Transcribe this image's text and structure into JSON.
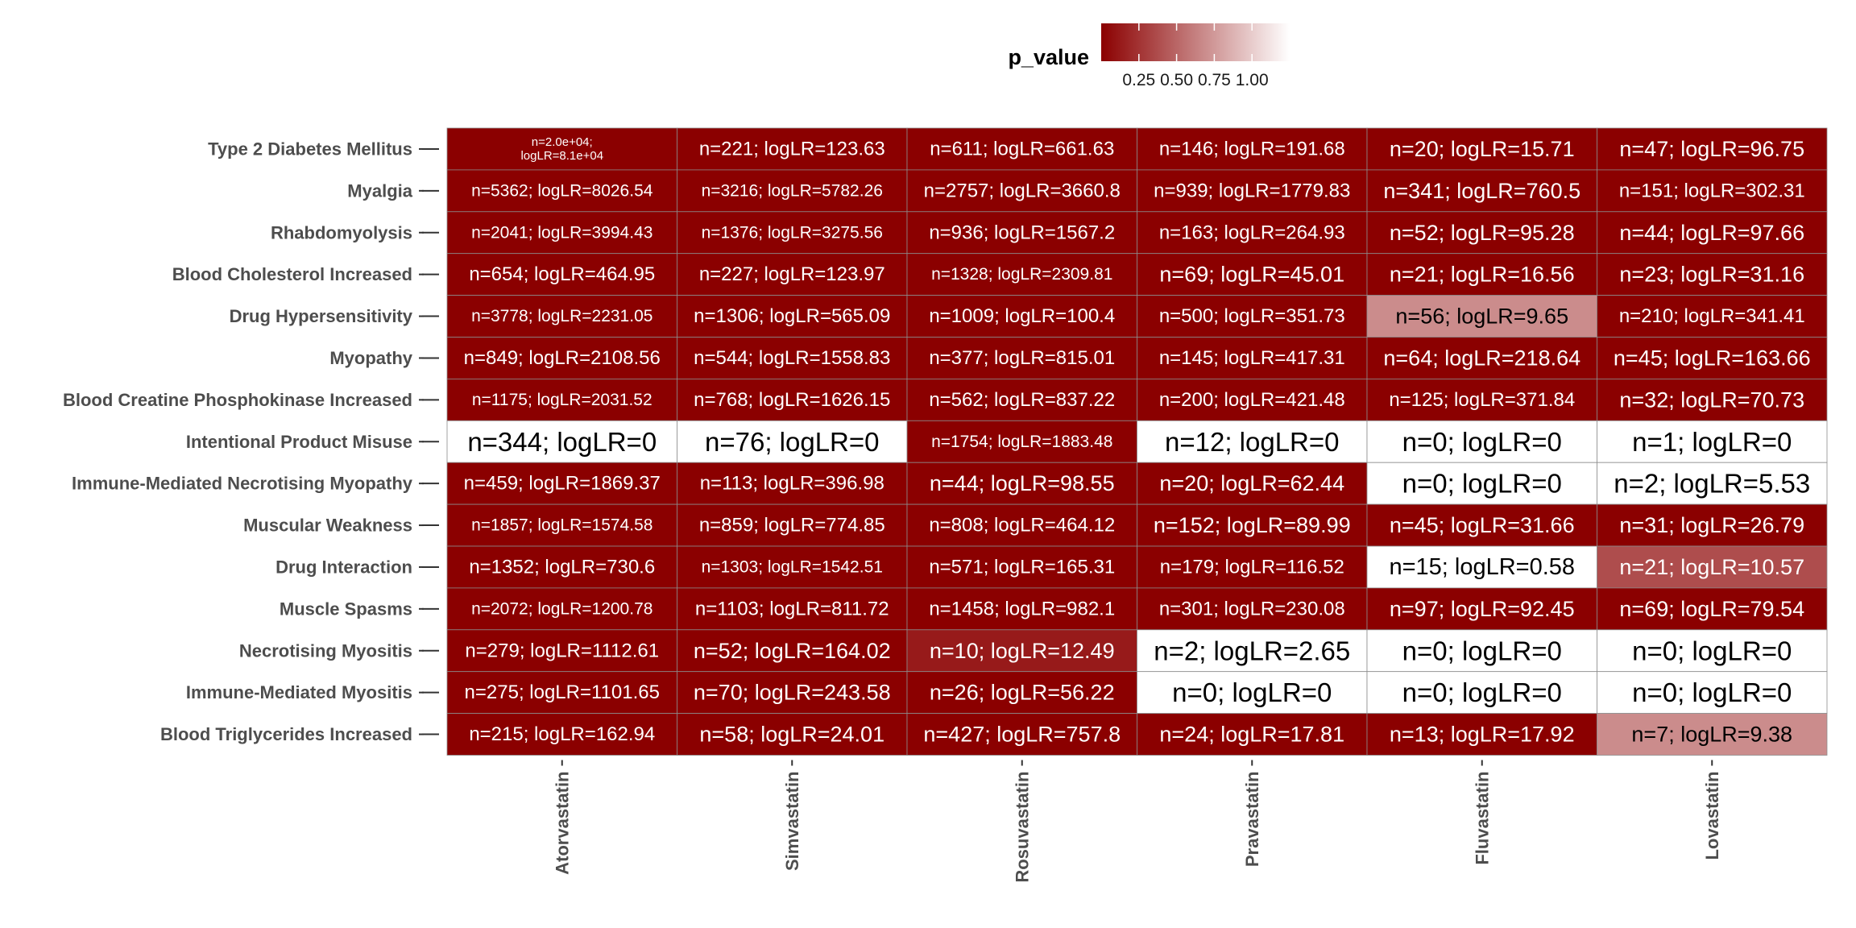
{
  "chart_data": {
    "type": "heatmap",
    "rows": [
      "Type 2 Diabetes Mellitus",
      "Myalgia",
      "Rhabdomyolysis",
      "Blood Cholesterol Increased",
      "Drug Hypersensitivity",
      "Myopathy",
      "Blood Creatine Phosphokinase Increased",
      "Intentional Product Misuse",
      "Immune-Mediated Necrotising Myopathy",
      "Muscular Weakness",
      "Drug Interaction",
      "Muscle Spasms",
      "Necrotising Myositis",
      "Immune-Mediated Myositis",
      "Blood Triglycerides Increased"
    ],
    "columns": [
      "Atorvastatin",
      "Simvastatin",
      "Rosuvastatin",
      "Pravastatin",
      "Fluvastatin",
      "Lovastatin"
    ],
    "labels": [
      [
        "n=2.0e+04;\nlogLR=8.1e+04",
        "n=221; logLR=123.63",
        "n=611; logLR=661.63",
        "n=146; logLR=191.68",
        "n=20; logLR=15.71",
        "n=47; logLR=96.75"
      ],
      [
        "n=5362; logLR=8026.54",
        "n=3216; logLR=5782.26",
        "n=2757; logLR=3660.8",
        "n=939; logLR=1779.83",
        "n=341; logLR=760.5",
        "n=151; logLR=302.31"
      ],
      [
        "n=2041; logLR=3994.43",
        "n=1376; logLR=3275.56",
        "n=936; logLR=1567.2",
        "n=163; logLR=264.93",
        "n=52; logLR=95.28",
        "n=44; logLR=97.66"
      ],
      [
        "n=654; logLR=464.95",
        "n=227; logLR=123.97",
        "n=1328; logLR=2309.81",
        "n=69; logLR=45.01",
        "n=21; logLR=16.56",
        "n=23; logLR=31.16"
      ],
      [
        "n=3778; logLR=2231.05",
        "n=1306; logLR=565.09",
        "n=1009; logLR=100.4",
        "n=500; logLR=351.73",
        "n=56; logLR=9.65",
        "n=210; logLR=341.41"
      ],
      [
        "n=849; logLR=2108.56",
        "n=544; logLR=1558.83",
        "n=377; logLR=815.01",
        "n=145; logLR=417.31",
        "n=64; logLR=218.64",
        "n=45; logLR=163.66"
      ],
      [
        "n=1175; logLR=2031.52",
        "n=768; logLR=1626.15",
        "n=562; logLR=837.22",
        "n=200; logLR=421.48",
        "n=125; logLR=371.84",
        "n=32; logLR=70.73"
      ],
      [
        "n=344; logLR=0",
        "n=76; logLR=0",
        "n=1754; logLR=1883.48",
        "n=12; logLR=0",
        "n=0; logLR=0",
        "n=1; logLR=0"
      ],
      [
        "n=459; logLR=1869.37",
        "n=113; logLR=396.98",
        "n=44; logLR=98.55",
        "n=20; logLR=62.44",
        "n=0; logLR=0",
        "n=2; logLR=5.53"
      ],
      [
        "n=1857; logLR=1574.58",
        "n=859; logLR=774.85",
        "n=808; logLR=464.12",
        "n=152; logLR=89.99",
        "n=45; logLR=31.66",
        "n=31; logLR=26.79"
      ],
      [
        "n=1352; logLR=730.6",
        "n=1303; logLR=1542.51",
        "n=571; logLR=165.31",
        "n=179; logLR=116.52",
        "n=15; logLR=0.58",
        "n=21; logLR=10.57"
      ],
      [
        "n=2072; logLR=1200.78",
        "n=1103; logLR=811.72",
        "n=1458; logLR=982.1",
        "n=301; logLR=230.08",
        "n=97; logLR=92.45",
        "n=69; logLR=79.54"
      ],
      [
        "n=279; logLR=1112.61",
        "n=52; logLR=164.02",
        "n=10; logLR=12.49",
        "n=2; logLR=2.65",
        "n=0; logLR=0",
        "n=0; logLR=0"
      ],
      [
        "n=275; logLR=1101.65",
        "n=70; logLR=243.58",
        "n=26; logLR=56.22",
        "n=0; logLR=0",
        "n=0; logLR=0",
        "n=0; logLR=0"
      ],
      [
        "n=215; logLR=162.94",
        "n=58; logLR=24.01",
        "n=427; logLR=757.8",
        "n=24; logLR=17.81",
        "n=13; logLR=17.92",
        "n=7; logLR=9.38"
      ]
    ],
    "p_value": [
      [
        0,
        0,
        0,
        0,
        0,
        0
      ],
      [
        0,
        0,
        0,
        0,
        0,
        0
      ],
      [
        0,
        0,
        0,
        0,
        0,
        0
      ],
      [
        0,
        0,
        0,
        0,
        0,
        0
      ],
      [
        0,
        0,
        0,
        0,
        0.55,
        0
      ],
      [
        0,
        0,
        0,
        0,
        0,
        0
      ],
      [
        0,
        0,
        0,
        0,
        0,
        0
      ],
      [
        1,
        1,
        0,
        1,
        1,
        1
      ],
      [
        0,
        0,
        0,
        0,
        1,
        1
      ],
      [
        0,
        0,
        0,
        0,
        0,
        0
      ],
      [
        0,
        0,
        0,
        0,
        1,
        0.3
      ],
      [
        0,
        0,
        0,
        0,
        0,
        0
      ],
      [
        0,
        0,
        0.1,
        1,
        1,
        1
      ],
      [
        0,
        0,
        0,
        1,
        1,
        1
      ],
      [
        0,
        0,
        0,
        0,
        0,
        0.55
      ]
    ],
    "legend": {
      "title": "p_value",
      "ticks": [
        "0.25",
        "0.50",
        "0.75",
        "1.00"
      ],
      "tick_values": [
        0.25,
        0.5,
        0.75,
        1.0
      ],
      "range": [
        0,
        1
      ],
      "low_color": "#8b0000",
      "high_color": "#ffffff"
    }
  }
}
